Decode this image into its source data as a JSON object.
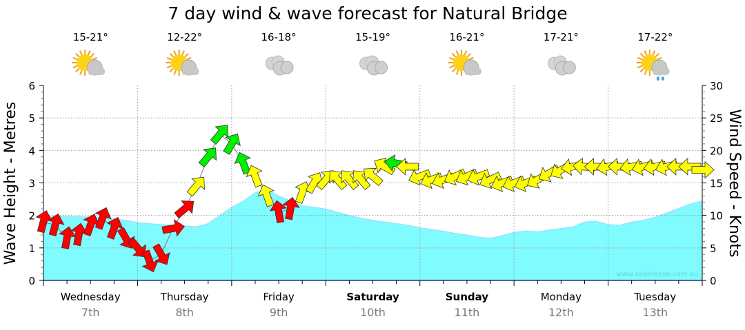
{
  "chart_data": {
    "type": "line",
    "title": "7 day wind & wave forecast for Natural Bridge",
    "ylabel": "Wave Height - Metres",
    "y2label": "Wind Speed - Knots",
    "ylim": [
      0,
      6
    ],
    "y2lim": [
      0,
      30
    ],
    "yticks": [
      "0",
      "1",
      "2",
      "3",
      "4",
      "5",
      "6"
    ],
    "y2ticks": [
      "0",
      "5",
      "10",
      "15",
      "20",
      "25",
      "30"
    ],
    "grid": true,
    "watermark": "www.seabreeze.com.au",
    "days": [
      {
        "name": "Wednesday",
        "date": "7th",
        "bold": false,
        "temp": "15-21°",
        "weather": "partly-cloudy"
      },
      {
        "name": "Thursday",
        "date": "8th",
        "bold": false,
        "temp": "12-22°",
        "weather": "partly-cloudy"
      },
      {
        "name": "Friday",
        "date": "9th",
        "bold": false,
        "temp": "16-18°",
        "weather": "cloudy"
      },
      {
        "name": "Saturday",
        "date": "10th",
        "bold": true,
        "temp": "15-19°",
        "weather": "cloudy"
      },
      {
        "name": "Sunday",
        "date": "11th",
        "bold": true,
        "temp": "16-21°",
        "weather": "partly-cloudy"
      },
      {
        "name": "Monday",
        "date": "12th",
        "bold": false,
        "temp": "17-21°",
        "weather": "cloudy"
      },
      {
        "name": "Tuesday",
        "date": "13th",
        "bold": false,
        "temp": "17-22°",
        "weather": "shower"
      }
    ],
    "x_step_hours": 3,
    "series": [
      {
        "name": "Wave Height (m)",
        "type": "area",
        "color": "#80fbff",
        "values": [
          1.98,
          1.98,
          1.97,
          1.96,
          1.95,
          1.93,
          1.9,
          1.85,
          1.78,
          1.75,
          1.72,
          1.7,
          1.68,
          1.65,
          1.75,
          2.0,
          2.25,
          2.45,
          2.7,
          2.8,
          2.6,
          2.45,
          2.3,
          2.25,
          2.2,
          2.1,
          2.0,
          1.92,
          1.85,
          1.8,
          1.75,
          1.7,
          1.62,
          1.57,
          1.52,
          1.45,
          1.4,
          1.33,
          1.3,
          1.38,
          1.48,
          1.52,
          1.5,
          1.55,
          1.6,
          1.65,
          1.8,
          1.82,
          1.72,
          1.7,
          1.8,
          1.85,
          1.95,
          2.08,
          2.22,
          2.35,
          2.45
        ]
      },
      {
        "name": "Wind Speed (knots)",
        "type": "arrows",
        "values": [
          9,
          8.5,
          6.5,
          7,
          8.5,
          9.5,
          8,
          6.5,
          5,
          3,
          4,
          8,
          11,
          14.5,
          19,
          22.5,
          21,
          18,
          16,
          13,
          10.5,
          11,
          13.5,
          15,
          15.5,
          15.5,
          15.5,
          15.5,
          16,
          17.5,
          18,
          17.5,
          16,
          15.5,
          15.5,
          16,
          16,
          16,
          15.5,
          15,
          15,
          15,
          15.5,
          16.5,
          17,
          17.5,
          17.5,
          17.5,
          17.5,
          17.5,
          17.5,
          17.5,
          17.5,
          17.5,
          17.5,
          17.5,
          17
        ],
        "direction_deg": [
          15,
          15,
          10,
          10,
          20,
          20,
          20,
          150,
          140,
          160,
          150,
          80,
          50,
          40,
          40,
          40,
          30,
          340,
          340,
          340,
          350,
          10,
          20,
          30,
          40,
          320,
          320,
          320,
          310,
          300,
          280,
          270,
          250,
          250,
          250,
          245,
          245,
          250,
          245,
          250,
          250,
          250,
          240,
          240,
          240,
          260,
          275,
          270,
          260,
          270,
          260,
          255,
          260,
          255,
          270,
          270,
          90
        ],
        "color_thresholds": [
          {
            "max": 12,
            "color": "#ff0000"
          },
          {
            "max": 18,
            "color": "#ffff00"
          },
          {
            "max": 99,
            "color": "#00ee00"
          }
        ]
      }
    ]
  }
}
